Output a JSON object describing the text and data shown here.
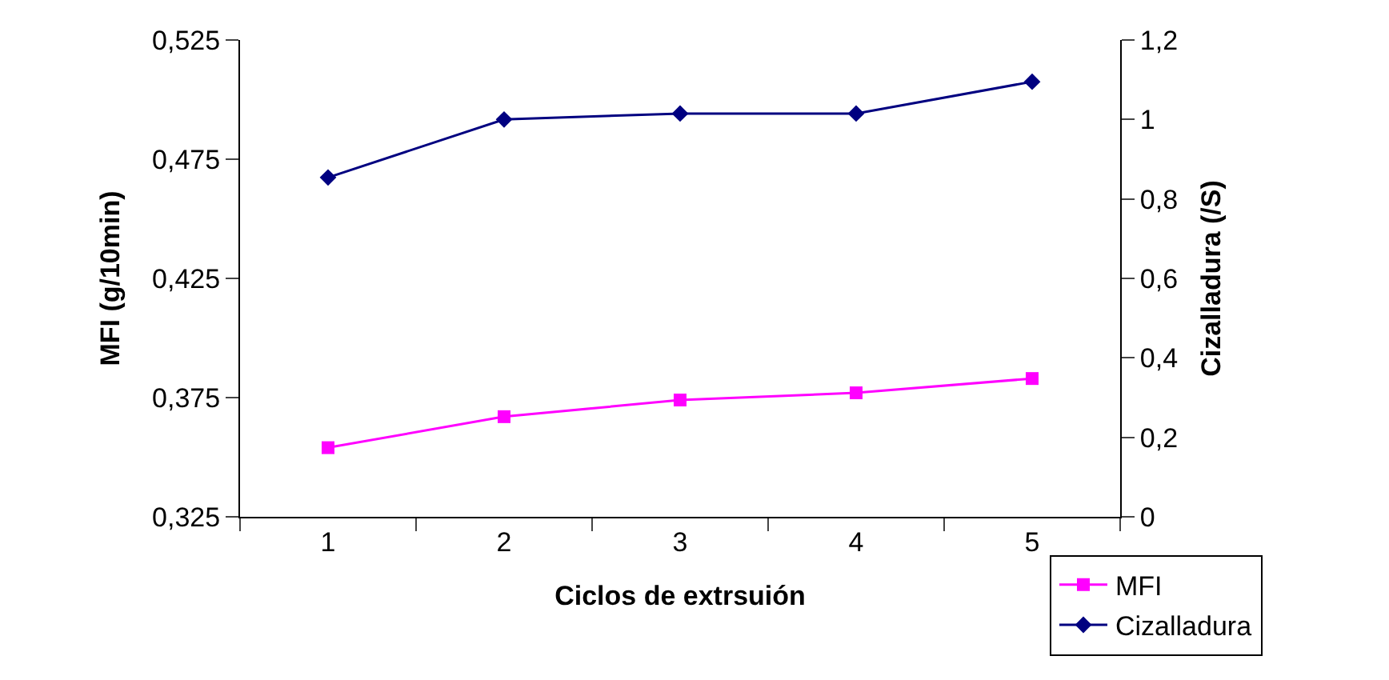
{
  "chart_data": {
    "type": "line",
    "xlabel": "Ciclos de extrsuión",
    "ylabel": "MFI (g/10min)",
    "y2label": "Cizalladura (/S)",
    "categories": [
      "1",
      "2",
      "3",
      "4",
      "5"
    ],
    "series": [
      {
        "name": "MFI",
        "color": "#ff00ff",
        "marker": "square",
        "values": [
          0.354,
          0.367,
          0.374,
          0.377,
          0.383
        ]
      },
      {
        "name": "Cizalladura",
        "color": "#000080",
        "marker": "diamond",
        "axis": "y2",
        "values": [
          0.854,
          1.0,
          1.015,
          1.015,
          1.095
        ]
      }
    ],
    "ylim": [
      0.325,
      0.525
    ],
    "yticks": [
      {
        "value": 0.325,
        "label": "0,325"
      },
      {
        "value": 0.375,
        "label": "0,375"
      },
      {
        "value": 0.425,
        "label": "0,425"
      },
      {
        "value": 0.475,
        "label": "0,475"
      },
      {
        "value": 0.525,
        "label": "0,525"
      }
    ],
    "y2lim": [
      0,
      1.2
    ],
    "y2ticks": [
      0,
      {
        "value": 0.2,
        "label": "0,2"
      },
      {
        "value": 0.4,
        "label": "0,4"
      },
      {
        "value": 0.6,
        "label": "0,6"
      },
      {
        "value": 0.8,
        "label": "0,8"
      },
      1,
      {
        "value": 1.2,
        "label": "1,2"
      }
    ],
    "legend": "bottom right"
  }
}
